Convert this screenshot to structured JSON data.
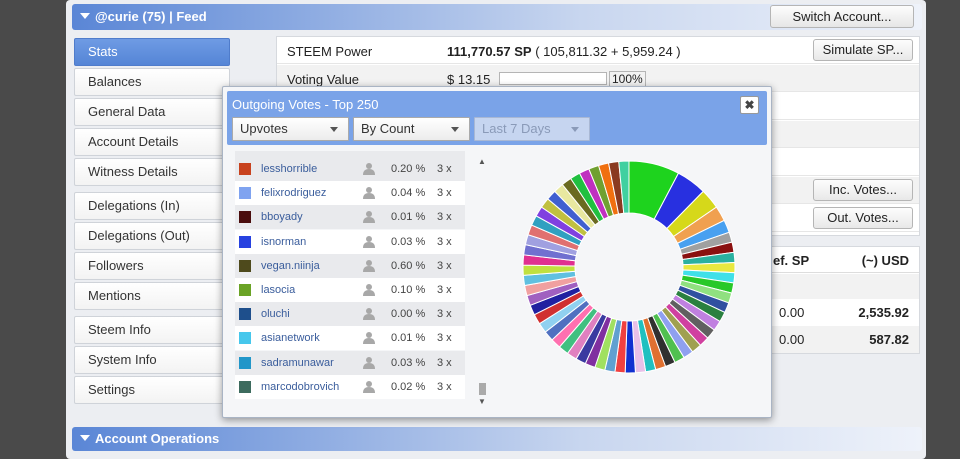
{
  "header": {
    "title": "@curie (75)  |  Feed",
    "switch_label": "Switch Account..."
  },
  "nav": {
    "items": [
      {
        "label": "Stats",
        "active": true
      },
      {
        "label": "Balances"
      },
      {
        "label": "General Data"
      },
      {
        "label": "Account Details"
      },
      {
        "label": "Witness Details"
      },
      {
        "label": "Delegations (In)"
      },
      {
        "label": "Delegations (Out)"
      },
      {
        "label": "Followers"
      },
      {
        "label": "Mentions"
      },
      {
        "label": "Steem Info"
      },
      {
        "label": "System Info"
      },
      {
        "label": "Settings"
      }
    ]
  },
  "stats": {
    "steem_power_label": "STEEM Power",
    "steem_power_value": "111,770.57 SP",
    "steem_power_detail": "( 105,811.32 + 5,959.24 )",
    "simulate_label": "Simulate SP...",
    "voting_value_label": "Voting Value",
    "voting_value": "$ 13.15",
    "voting_power_pct": "100%",
    "voting_power_fraction": 1.0,
    "inc_votes_label": "Inc. Votes...",
    "out_votes_label": "Out. Votes..."
  },
  "table2": {
    "col1": "ef. SP",
    "col2": "(~) USD",
    "rows": [
      {
        "sp": "0.00",
        "usd": "2,535.92"
      },
      {
        "sp": "0.00",
        "usd": "587.82"
      }
    ]
  },
  "account_ops": {
    "title": "Account Operations"
  },
  "popup": {
    "title": "Outgoing Votes - Top 250",
    "close_label": "✖",
    "select_type": "Upvotes",
    "select_sort": "By Count",
    "select_period": "Last 7 Days",
    "rows": [
      {
        "color": "#c8421e",
        "user": "lesshorrible",
        "pct": "0.20 %",
        "count": "3 x"
      },
      {
        "color": "#7fa3f0",
        "user": "felixrodriguez",
        "pct": "0.04 %",
        "count": "3 x"
      },
      {
        "color": "#4a0d0d",
        "user": "bboyady",
        "pct": "0.01 %",
        "count": "3 x"
      },
      {
        "color": "#2742e0",
        "user": "isnorman",
        "pct": "0.03 %",
        "count": "3 x"
      },
      {
        "color": "#4e4a1c",
        "user": "vegan.niinja",
        "pct": "0.60 %",
        "count": "3 x"
      },
      {
        "color": "#6aa326",
        "user": "lasocia",
        "pct": "0.10 %",
        "count": "3 x"
      },
      {
        "color": "#1e4f8c",
        "user": "oluchi",
        "pct": "0.00 %",
        "count": "3 x"
      },
      {
        "color": "#46c7ec",
        "user": "asianetwork",
        "pct": "0.01 %",
        "count": "3 x"
      },
      {
        "color": "#2196c9",
        "user": "sadramunawar",
        "pct": "0.03 %",
        "count": "3 x"
      },
      {
        "color": "#3d6b5e",
        "user": "marcodobrovich",
        "pct": "0.02 %",
        "count": "3 x"
      }
    ]
  },
  "colors": {
    "accent": "#5585d6",
    "popup_header": "#7aa3e8",
    "link": "#3a5d9c"
  },
  "chart_data": {
    "type": "pie",
    "donut": true,
    "slices": [
      {
        "color": "#1ed31e",
        "value": 10
      },
      {
        "color": "#2830e0",
        "value": 6
      },
      {
        "color": "#d6d81a",
        "value": 4
      },
      {
        "color": "#f0a050",
        "value": 3
      },
      {
        "color": "#48a0f0",
        "value": 2.5
      },
      {
        "color": "#a0a0a0",
        "value": 2
      },
      {
        "color": "#8a1010",
        "value": 2
      },
      {
        "color": "#2ab0a0",
        "value": 2
      },
      {
        "color": "#e8e840",
        "value": 2
      },
      {
        "color": "#40e0e8",
        "value": 2
      },
      {
        "color": "#28c828",
        "value": 2
      },
      {
        "color": "#90e080",
        "value": 2
      },
      {
        "color": "#3050a0",
        "value": 2
      },
      {
        "color": "#2a8040",
        "value": 2
      },
      {
        "color": "#c080e0",
        "value": 2
      },
      {
        "color": "#606060",
        "value": 2
      },
      {
        "color": "#d040a0",
        "value": 2
      },
      {
        "color": "#a0a050",
        "value": 2
      },
      {
        "color": "#8fa0f0",
        "value": 2
      },
      {
        "color": "#50c050",
        "value": 2
      },
      {
        "color": "#303030",
        "value": 2
      },
      {
        "color": "#e07030",
        "value": 2
      },
      {
        "color": "#20c0c0",
        "value": 2
      },
      {
        "color": "#e8c0e8",
        "value": 2
      },
      {
        "color": "#1030d0",
        "value": 2
      },
      {
        "color": "#f04040",
        "value": 2
      },
      {
        "color": "#60a0d0",
        "value": 2
      },
      {
        "color": "#a0e060",
        "value": 2
      },
      {
        "color": "#8030a0",
        "value": 2
      },
      {
        "color": "#3a3aa0",
        "value": 2
      },
      {
        "color": "#e080c0",
        "value": 2
      },
      {
        "color": "#40c080",
        "value": 2
      },
      {
        "color": "#ff70b0",
        "value": 2
      },
      {
        "color": "#5070c0",
        "value": 2
      },
      {
        "color": "#90d0f0",
        "value": 2
      },
      {
        "color": "#d03030",
        "value": 2
      },
      {
        "color": "#2020a0",
        "value": 2
      },
      {
        "color": "#a060c0",
        "value": 2
      },
      {
        "color": "#f0a0a0",
        "value": 2
      },
      {
        "color": "#60c0e0",
        "value": 2
      },
      {
        "color": "#c0e040",
        "value": 2
      },
      {
        "color": "#e03090",
        "value": 2
      },
      {
        "color": "#7070d0",
        "value": 2
      },
      {
        "color": "#a0a0e0",
        "value": 2
      },
      {
        "color": "#e07070",
        "value": 2
      },
      {
        "color": "#30a0c0",
        "value": 2
      },
      {
        "color": "#8040e0",
        "value": 2
      },
      {
        "color": "#c0c040",
        "value": 2
      },
      {
        "color": "#4060d0",
        "value": 2
      },
      {
        "color": "#e8e8a0",
        "value": 2
      },
      {
        "color": "#6a6a20",
        "value": 2
      },
      {
        "color": "#20c040",
        "value": 2
      },
      {
        "color": "#c030c0",
        "value": 2
      },
      {
        "color": "#70a030",
        "value": 2
      },
      {
        "color": "#f07010",
        "value": 2
      },
      {
        "color": "#8a3a20",
        "value": 2
      },
      {
        "color": "#40d0a0",
        "value": 2
      }
    ]
  }
}
